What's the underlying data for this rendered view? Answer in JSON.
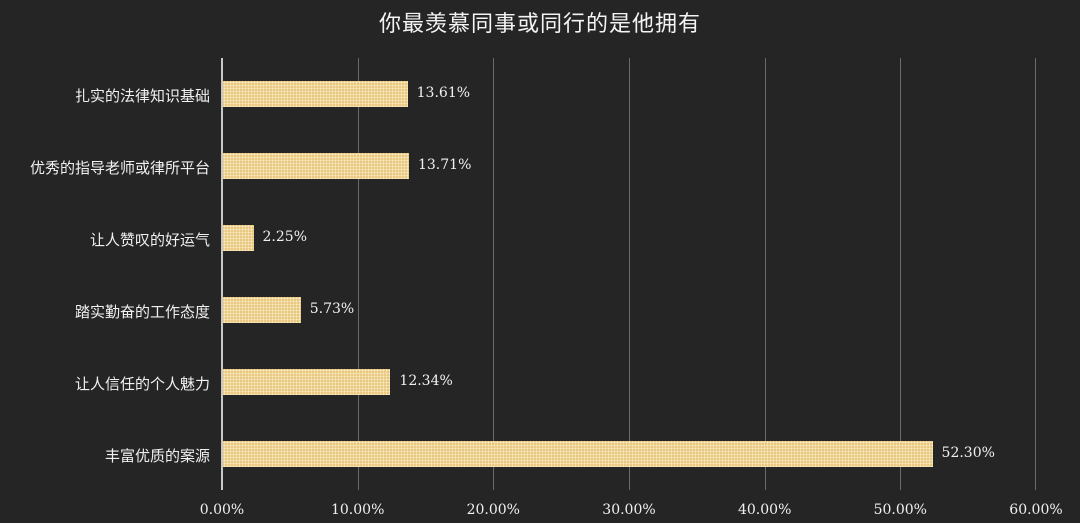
{
  "chart_data": {
    "type": "bar",
    "orientation": "horizontal",
    "title": "你最羡慕同事或同行的是他拥有",
    "categories": [
      "扎实的法律知识基础",
      "优秀的指导老师或律所平台",
      "让人赞叹的好运气",
      "踏实勤奋的工作态度",
      "让人信任的个人魅力",
      "丰富优质的案源"
    ],
    "values": [
      13.61,
      13.71,
      2.25,
      5.73,
      12.34,
      52.3
    ],
    "value_labels": [
      "13.61%",
      "13.71%",
      "2.25%",
      "5.73%",
      "12.34%",
      "52.30%"
    ],
    "xlabel": "",
    "ylabel": "",
    "xlim": [
      0,
      60
    ],
    "x_ticks": [
      "0.00%",
      "10.00%",
      "20.00%",
      "30.00%",
      "40.00%",
      "50.00%",
      "60.00%"
    ],
    "grid": true,
    "legend": "none",
    "colors": {
      "background": "#252525",
      "bar": "#e6c47a",
      "bar_pattern": "#fbeec8",
      "gridline": "#6a6a6a",
      "text": "#f0f0f0"
    }
  }
}
